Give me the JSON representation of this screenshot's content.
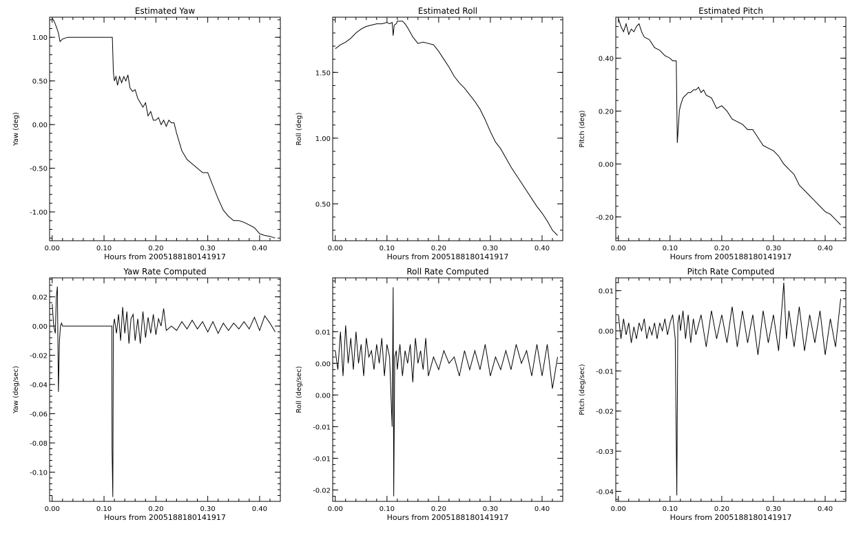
{
  "chart_data": [
    {
      "type": "line",
      "title": "Estimated Yaw",
      "xlabel": "Hours from 2005188180141917",
      "ylabel": "Yaw (deg)",
      "xlim": [
        -0.005,
        0.44
      ],
      "ylim": [
        -1.33,
        1.23
      ],
      "xticks": [
        "0.00",
        "0.10",
        "0.20",
        "0.30",
        "0.40"
      ],
      "yticks": [
        "-1.00",
        "-0.50",
        "0.00",
        "0.50",
        "1.00"
      ],
      "series": [
        {
          "x": [
            0.0,
            0.004,
            0.008,
            0.012,
            0.015,
            0.02,
            0.03,
            0.06,
            0.1,
            0.116,
            0.118,
            0.12,
            0.123,
            0.126,
            0.13,
            0.134,
            0.138,
            0.142,
            0.146,
            0.15,
            0.155,
            0.16,
            0.165,
            0.17,
            0.175,
            0.18,
            0.185,
            0.19,
            0.195,
            0.2,
            0.205,
            0.21,
            0.215,
            0.22,
            0.225,
            0.23,
            0.235,
            0.24,
            0.25,
            0.26,
            0.27,
            0.28,
            0.29,
            0.3,
            0.31,
            0.32,
            0.33,
            0.34,
            0.35,
            0.36,
            0.37,
            0.38,
            0.39,
            0.4,
            0.41,
            0.42,
            0.43
          ],
          "y": [
            1.22,
            1.18,
            1.12,
            1.05,
            0.95,
            0.98,
            1.0,
            1.0,
            1.0,
            1.0,
            0.6,
            0.5,
            0.55,
            0.45,
            0.55,
            0.48,
            0.55,
            0.5,
            0.57,
            0.42,
            0.38,
            0.4,
            0.3,
            0.25,
            0.2,
            0.25,
            0.1,
            0.15,
            0.05,
            0.05,
            0.08,
            0.0,
            0.05,
            -0.02,
            0.05,
            0.02,
            0.02,
            -0.1,
            -0.3,
            -0.4,
            -0.45,
            -0.5,
            -0.55,
            -0.55,
            -0.7,
            -0.85,
            -0.98,
            -1.05,
            -1.1,
            -1.1,
            -1.12,
            -1.15,
            -1.18,
            -1.25,
            -1.27,
            -1.28,
            -1.3
          ]
        }
      ]
    },
    {
      "type": "line",
      "title": "Estimated Roll",
      "xlabel": "Hours from 2005188180141917",
      "ylabel": "Roll (deg)",
      "xlim": [
        -0.005,
        0.44
      ],
      "ylim": [
        0.22,
        1.92
      ],
      "xticks": [
        "0.00",
        "0.10",
        "0.20",
        "0.30",
        "0.40"
      ],
      "yticks": [
        "0.50",
        "1.00",
        "1.50"
      ],
      "series": [
        {
          "x": [
            0.0,
            0.01,
            0.02,
            0.03,
            0.04,
            0.05,
            0.06,
            0.07,
            0.08,
            0.09,
            0.1,
            0.105,
            0.11,
            0.112,
            0.114,
            0.118,
            0.12,
            0.125,
            0.13,
            0.135,
            0.14,
            0.15,
            0.16,
            0.17,
            0.18,
            0.19,
            0.2,
            0.21,
            0.22,
            0.23,
            0.24,
            0.25,
            0.26,
            0.27,
            0.28,
            0.29,
            0.3,
            0.31,
            0.32,
            0.33,
            0.34,
            0.35,
            0.36,
            0.37,
            0.38,
            0.39,
            0.4,
            0.41,
            0.42,
            0.43
          ],
          "y": [
            1.68,
            1.71,
            1.73,
            1.76,
            1.8,
            1.83,
            1.85,
            1.86,
            1.87,
            1.87,
            1.88,
            1.87,
            1.88,
            1.78,
            1.86,
            1.87,
            1.89,
            1.89,
            1.89,
            1.87,
            1.84,
            1.77,
            1.72,
            1.73,
            1.72,
            1.71,
            1.66,
            1.6,
            1.54,
            1.47,
            1.42,
            1.38,
            1.33,
            1.28,
            1.22,
            1.14,
            1.05,
            0.97,
            0.92,
            0.85,
            0.78,
            0.72,
            0.66,
            0.6,
            0.54,
            0.48,
            0.43,
            0.37,
            0.3,
            0.26
          ]
        }
      ]
    },
    {
      "type": "line",
      "title": "Estimated Pitch",
      "xlabel": "Hours from 2005188180141917",
      "ylabel": "Pitch (deg)",
      "xlim": [
        -0.005,
        0.44
      ],
      "ylim": [
        -0.29,
        0.555
      ],
      "xticks": [
        "0.00",
        "0.10",
        "0.20",
        "0.30",
        "0.40"
      ],
      "yticks": [
        "-0.20",
        "0.00",
        "0.20",
        "0.40"
      ],
      "series": [
        {
          "x": [
            0.0,
            0.005,
            0.01,
            0.015,
            0.02,
            0.025,
            0.03,
            0.035,
            0.04,
            0.045,
            0.05,
            0.06,
            0.07,
            0.08,
            0.09,
            0.1,
            0.105,
            0.112,
            0.114,
            0.118,
            0.12,
            0.125,
            0.13,
            0.135,
            0.14,
            0.145,
            0.15,
            0.155,
            0.16,
            0.165,
            0.17,
            0.18,
            0.19,
            0.2,
            0.21,
            0.22,
            0.23,
            0.24,
            0.25,
            0.26,
            0.27,
            0.28,
            0.29,
            0.3,
            0.31,
            0.32,
            0.33,
            0.34,
            0.35,
            0.36,
            0.37,
            0.38,
            0.39,
            0.4,
            0.41,
            0.42,
            0.43
          ],
          "y": [
            0.55,
            0.52,
            0.5,
            0.53,
            0.49,
            0.51,
            0.5,
            0.52,
            0.53,
            0.5,
            0.48,
            0.47,
            0.44,
            0.43,
            0.41,
            0.4,
            0.39,
            0.39,
            0.08,
            0.2,
            0.22,
            0.25,
            0.26,
            0.27,
            0.27,
            0.28,
            0.28,
            0.29,
            0.27,
            0.28,
            0.26,
            0.25,
            0.21,
            0.22,
            0.2,
            0.17,
            0.16,
            0.15,
            0.13,
            0.13,
            0.1,
            0.07,
            0.06,
            0.05,
            0.03,
            0.0,
            -0.02,
            -0.04,
            -0.08,
            -0.1,
            -0.12,
            -0.14,
            -0.16,
            -0.18,
            -0.19,
            -0.21,
            -0.23
          ]
        }
      ]
    },
    {
      "type": "line",
      "title": "Yaw Rate Computed",
      "xlabel": "Hours from 2005188180141917",
      "ylabel": "Yaw (deg/sec)",
      "xlim": [
        -0.005,
        0.44
      ],
      "ylim": [
        -0.12,
        0.033
      ],
      "xticks": [
        "0.00",
        "0.10",
        "0.20",
        "0.30",
        "0.40"
      ],
      "yticks": [
        "-0.10",
        "-0.08",
        "-0.06",
        "-0.04",
        "-0.02",
        "0.00",
        "0.02"
      ],
      "series": [
        {
          "x": [
            0.0,
            0.003,
            0.006,
            0.008,
            0.01,
            0.012,
            0.014,
            0.016,
            0.018,
            0.02,
            0.025,
            0.05,
            0.1,
            0.115,
            0.1155,
            0.117,
            0.118,
            0.12,
            0.124,
            0.128,
            0.132,
            0.136,
            0.14,
            0.144,
            0.148,
            0.152,
            0.156,
            0.16,
            0.165,
            0.17,
            0.175,
            0.18,
            0.185,
            0.19,
            0.195,
            0.2,
            0.205,
            0.21,
            0.215,
            0.22,
            0.23,
            0.24,
            0.25,
            0.26,
            0.27,
            0.28,
            0.29,
            0.3,
            0.31,
            0.32,
            0.33,
            0.34,
            0.35,
            0.36,
            0.37,
            0.38,
            0.39,
            0.4,
            0.41,
            0.42,
            0.43
          ],
          "y": [
            0.015,
            0.0,
            -0.005,
            0.02,
            0.027,
            -0.045,
            -0.01,
            0.0,
            0.002,
            0.0,
            0.0,
            0.0,
            0.0,
            0.0,
            -0.085,
            -0.117,
            0.0,
            0.005,
            -0.005,
            0.008,
            -0.01,
            0.013,
            -0.005,
            0.01,
            -0.012,
            0.005,
            0.008,
            -0.01,
            0.005,
            -0.012,
            0.01,
            -0.008,
            0.006,
            -0.005,
            0.008,
            -0.006,
            0.005,
            0.0,
            0.012,
            -0.003,
            0.0,
            -0.003,
            0.003,
            -0.002,
            0.004,
            -0.002,
            0.003,
            -0.004,
            0.003,
            -0.005,
            0.002,
            -0.003,
            0.002,
            -0.002,
            0.003,
            -0.002,
            0.006,
            -0.003,
            0.007,
            0.002,
            -0.004
          ]
        }
      ]
    },
    {
      "type": "line",
      "title": "Roll Rate Computed",
      "xlabel": "Hours from 2005188180141917",
      "ylabel": "Roll (deg/sec)",
      "xlim": [
        -0.005,
        0.44
      ],
      "ylim": [
        -0.0218,
        0.0135
      ],
      "xticks": [
        "0.00",
        "0.10",
        "0.20",
        "0.30",
        "0.40"
      ],
      "yticks": [
        "-0.02",
        "-0.01",
        "-0.01",
        "0.00",
        "0.00",
        "0.01"
      ],
      "series": [
        {
          "x": [
            0.0,
            0.005,
            0.01,
            0.015,
            0.02,
            0.025,
            0.03,
            0.035,
            0.04,
            0.045,
            0.05,
            0.055,
            0.06,
            0.065,
            0.07,
            0.075,
            0.08,
            0.085,
            0.09,
            0.095,
            0.1,
            0.105,
            0.11,
            0.112,
            0.113,
            0.115,
            0.118,
            0.12,
            0.125,
            0.13,
            0.135,
            0.14,
            0.145,
            0.15,
            0.155,
            0.16,
            0.165,
            0.17,
            0.175,
            0.18,
            0.19,
            0.2,
            0.21,
            0.22,
            0.23,
            0.24,
            0.25,
            0.26,
            0.27,
            0.28,
            0.29,
            0.3,
            0.31,
            0.32,
            0.33,
            0.34,
            0.35,
            0.36,
            0.37,
            0.38,
            0.39,
            0.4,
            0.41,
            0.42,
            0.43
          ],
          "y": [
            0.002,
            -0.001,
            0.005,
            -0.002,
            0.006,
            0.0,
            0.004,
            -0.001,
            0.005,
            0.0,
            0.003,
            -0.002,
            0.004,
            0.001,
            0.002,
            -0.001,
            0.003,
            0.0,
            0.004,
            -0.002,
            0.003,
            0.001,
            -0.01,
            0.012,
            -0.021,
            0.001,
            0.002,
            -0.001,
            0.003,
            -0.002,
            0.002,
            0.0,
            0.003,
            -0.003,
            0.004,
            0.0,
            0.002,
            -0.001,
            0.004,
            -0.002,
            0.001,
            -0.001,
            0.002,
            0.0,
            0.001,
            -0.002,
            0.002,
            -0.001,
            0.002,
            -0.001,
            0.003,
            -0.002,
            0.001,
            -0.001,
            0.002,
            -0.001,
            0.003,
            0.0,
            0.002,
            -0.002,
            0.003,
            -0.002,
            0.003,
            -0.004,
            0.001
          ]
        }
      ]
    },
    {
      "type": "line",
      "title": "Pitch Rate Computed",
      "xlabel": "Hours from 2005188180141917",
      "ylabel": "Pitch (deg/sec)",
      "xlim": [
        -0.005,
        0.44
      ],
      "ylim": [
        -0.0425,
        0.0132
      ],
      "xticks": [
        "0.00",
        "0.10",
        "0.20",
        "0.30",
        "0.40"
      ],
      "yticks": [
        "-0.04",
        "-0.03",
        "-0.02",
        "-0.01",
        "0.00",
        "0.01"
      ],
      "series": [
        {
          "x": [
            0.0,
            0.005,
            0.01,
            0.015,
            0.02,
            0.025,
            0.03,
            0.035,
            0.04,
            0.045,
            0.05,
            0.055,
            0.06,
            0.065,
            0.07,
            0.075,
            0.08,
            0.085,
            0.09,
            0.095,
            0.1,
            0.105,
            0.11,
            0.113,
            0.115,
            0.118,
            0.12,
            0.125,
            0.13,
            0.135,
            0.14,
            0.145,
            0.15,
            0.16,
            0.17,
            0.18,
            0.19,
            0.2,
            0.21,
            0.22,
            0.23,
            0.24,
            0.25,
            0.26,
            0.27,
            0.28,
            0.29,
            0.3,
            0.31,
            0.32,
            0.325,
            0.33,
            0.34,
            0.35,
            0.36,
            0.37,
            0.38,
            0.39,
            0.4,
            0.41,
            0.42,
            0.43
          ],
          "y": [
            0.004,
            -0.002,
            0.003,
            -0.001,
            0.002,
            -0.003,
            0.001,
            -0.002,
            0.002,
            0.0,
            0.003,
            -0.002,
            0.001,
            -0.001,
            0.002,
            -0.002,
            0.002,
            0.0,
            0.003,
            -0.001,
            0.002,
            0.004,
            -0.002,
            -0.041,
            0.002,
            0.004,
            0.0,
            0.005,
            -0.002,
            0.004,
            -0.003,
            0.003,
            -0.001,
            0.004,
            -0.004,
            0.005,
            -0.002,
            0.004,
            -0.003,
            0.006,
            -0.004,
            0.005,
            -0.003,
            0.004,
            -0.006,
            0.005,
            -0.003,
            0.004,
            -0.005,
            0.012,
            -0.002,
            0.005,
            -0.004,
            0.006,
            -0.005,
            0.004,
            -0.003,
            0.005,
            -0.006,
            0.003,
            -0.004,
            0.008
          ]
        }
      ]
    }
  ]
}
